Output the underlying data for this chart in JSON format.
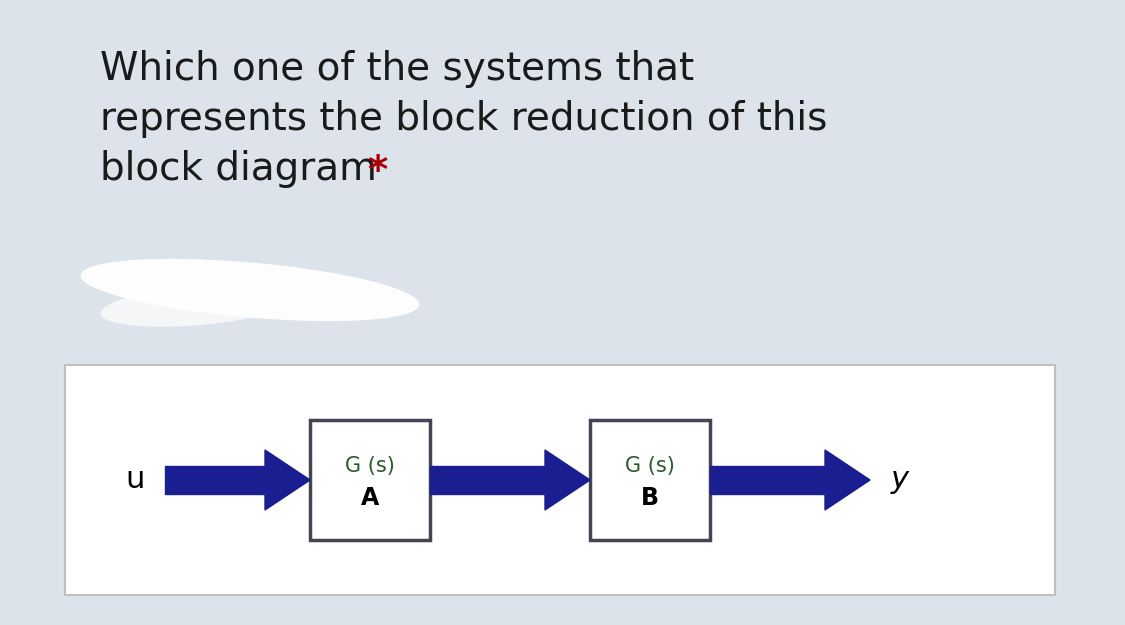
{
  "title_line1": "Which one of the systems that",
  "title_line2": "represents the block reduction of this",
  "title_line3": "block diagram",
  "asterisk": "*",
  "title_color": "#1a1a1a",
  "asterisk_color": "#aa0000",
  "top_bg_color": "#dce3ea",
  "bottom_panel_bg": "#ffffff",
  "bottom_panel_edge": "#c0c0c0",
  "box_fill_color": "#ffffff",
  "box_edge_color": "#444455",
  "arrow_color": "#1a1e90",
  "label_u": "u",
  "label_y": "y",
  "block_a_line1": "G (s)",
  "block_a_line2": "A",
  "block_b_line1": "G (s)",
  "block_b_line2": "B",
  "block_text_color": "#2a5a2a",
  "block_label_color": "#000000",
  "figsize": [
    11.25,
    6.25
  ],
  "dpi": 100
}
